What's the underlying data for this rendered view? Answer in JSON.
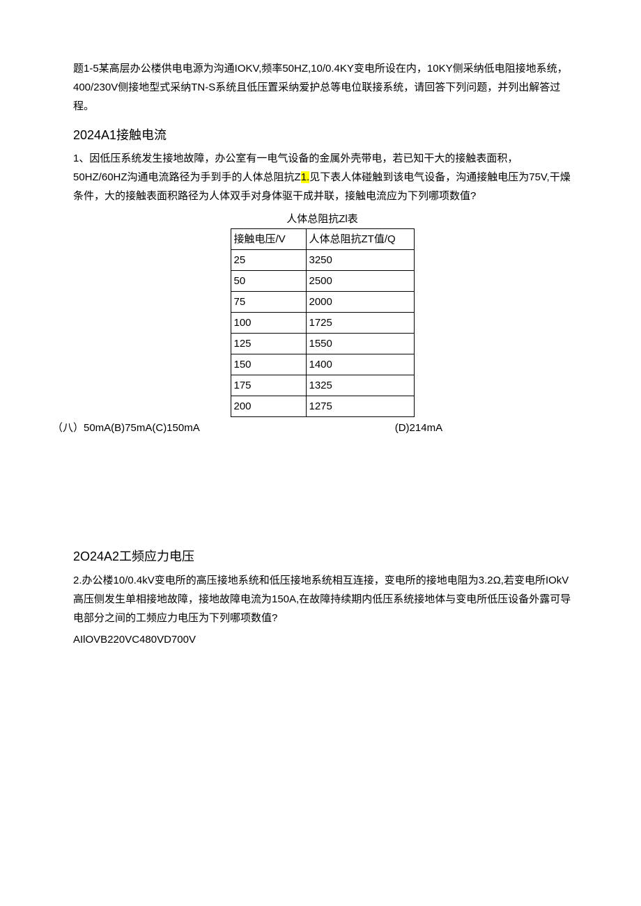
{
  "intro": {
    "text": "题1-5某高层办公楼供电电源为沟通IOKV,频率50HZ,10/0.4KY变电所设在内，10KY侧采纳低电阻接地系统，400/230V侧接地型式采纳TN-S系统且低压置采纳爱护总等电位联接系统，请回答下列问题，并列出解答过程。"
  },
  "section1": {
    "heading": "2024A1接触电流",
    "body_pre": "1、因低压系统发生接地故障，办公室有一电气设备的金属外壳带电，若已知干大的接触表面积，50HZ/60HZ沟通电流路径为手到手的人体总阻抗Z",
    "highlight": "1.",
    "body_post": "见下表人体碰触到该电气设备，沟通接触电压为75V,干燥条件，大的接触表面积路径为人体双手对身体驱干成并联，接触电流应为下列哪项数值?",
    "table_title": "人体总阻抗Zl表",
    "col1_header": "接触电压/V",
    "col2_header": "人体总阻抗ZT值/Q",
    "rows": [
      {
        "v": "25",
        "z": "3250"
      },
      {
        "v": "50",
        "z": "2500"
      },
      {
        "v": "75",
        "z": "2000"
      },
      {
        "v": "100",
        "z": "1725"
      },
      {
        "v": "125",
        "z": "1550"
      },
      {
        "v": "150",
        "z": "1400"
      },
      {
        "v": "175",
        "z": "1325"
      },
      {
        "v": "200",
        "z": "1275"
      }
    ],
    "options_left": "（八）50mA(B)75mA(C)150mA",
    "options_right": "(D)214mA"
  },
  "section2": {
    "heading": "2O24A2工频应力电压",
    "body": "2.办公楼10/0.4kV变电所的高压接地系统和低压接地系统相互连接，变电所的接地电阻为3.2Ω,若变电所IOkV高压侧发生单相接地故障，接地故障电流为150A,在故障持续期内低压系统接地体与变电所低压设备外露可导电部分之间的工频应力电压为下列哪项数值?",
    "options": "AIlOVB220VC480VD700V"
  },
  "colors": {
    "highlight_bg": "#ffff00",
    "text": "#000000",
    "border": "#000000",
    "background": "#ffffff"
  }
}
